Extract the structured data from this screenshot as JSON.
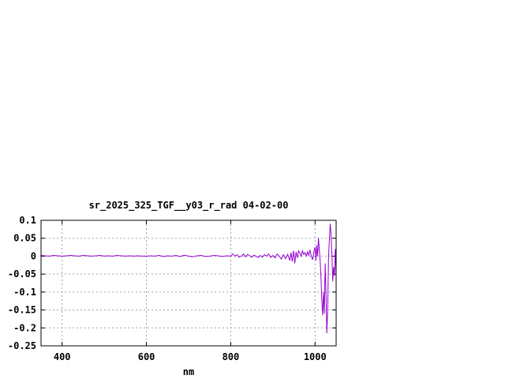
{
  "chart_data": {
    "type": "line",
    "title": "sr_2025_325_TGF__y03_r_rad 04-02-00",
    "xlabel": "nm",
    "ylabel": "",
    "xlim": [
      350,
      1050
    ],
    "ylim": [
      -0.25,
      0.1
    ],
    "xticks": [
      400,
      600,
      800,
      1000
    ],
    "xtick_labels": [
      "400",
      "600",
      "800",
      "1000"
    ],
    "yticks": [
      0.1,
      0.05,
      0,
      -0.05,
      -0.1,
      -0.15,
      -0.2,
      -0.25
    ],
    "ytick_labels": [
      "0.1",
      "0.05",
      "0",
      "-0.05",
      "-0.1",
      "-0.15",
      "-0.2",
      "-0.25"
    ],
    "grid": true,
    "series_color": "#9400d3",
    "series": [
      {
        "x": [
          350,
          360,
          370,
          380,
          390,
          400,
          410,
          420,
          430,
          440,
          450,
          460,
          470,
          480,
          490,
          500,
          510,
          520,
          530,
          540,
          550,
          560,
          570,
          580,
          590,
          600,
          610,
          620,
          630,
          640,
          650,
          660,
          670,
          680,
          690,
          700,
          710,
          720,
          730,
          740,
          750,
          760,
          770,
          780,
          790,
          800,
          805,
          810,
          815,
          820,
          825,
          830,
          835,
          840,
          845,
          850,
          855,
          860,
          865,
          870,
          875,
          880,
          885,
          890,
          895,
          900,
          905,
          910,
          915,
          920,
          925,
          930,
          935,
          940,
          943,
          946,
          949,
          952,
          955,
          958,
          961,
          964,
          967,
          970,
          973,
          976,
          979,
          982,
          985,
          988,
          991,
          994,
          997,
          1000,
          1002,
          1004,
          1006,
          1008,
          1010,
          1012,
          1014,
          1016,
          1018,
          1020,
          1022,
          1024,
          1026,
          1028,
          1030,
          1032,
          1034,
          1036,
          1038,
          1040,
          1042,
          1044,
          1046,
          1048,
          1050
        ],
        "y": [
          0.002,
          0.001,
          0.0,
          0.002,
          0.001,
          0.0,
          0.001,
          0.002,
          0.001,
          0.0,
          0.002,
          0.001,
          0.0,
          0.001,
          0.002,
          0.0,
          0.001,
          0.0,
          0.002,
          0.001,
          0.0,
          0.001,
          0.0,
          0.001,
          0.0,
          0.0,
          0.001,
          0.0,
          0.002,
          -0.001,
          0.001,
          0.0,
          0.002,
          -0.001,
          0.003,
          0.0,
          -0.002,
          0.001,
          0.002,
          -0.001,
          0.0,
          0.002,
          0.001,
          -0.001,
          0.001,
          0.0,
          0.006,
          0.0,
          0.004,
          -0.003,
          0.0,
          0.006,
          -0.002,
          0.005,
          0.001,
          -0.003,
          0.003,
          0.0,
          -0.004,
          0.002,
          -0.003,
          0.004,
          0.0,
          0.006,
          -0.004,
          0.002,
          -0.005,
          0.006,
          0.0,
          -0.008,
          0.004,
          -0.007,
          0.005,
          -0.012,
          0.01,
          -0.015,
          0.015,
          -0.02,
          0.012,
          -0.005,
          0.015,
          0.008,
          0.0,
          0.015,
          0.005,
          0.01,
          0.0,
          0.012,
          0.002,
          0.018,
          0.0,
          -0.01,
          0.012,
          0.025,
          -0.012,
          0.03,
          0.0,
          0.05,
          0.02,
          -0.01,
          -0.06,
          -0.12,
          -0.165,
          -0.1,
          -0.16,
          -0.02,
          -0.11,
          -0.215,
          -0.15,
          0.0,
          0.05,
          0.09,
          0.06,
          0.0,
          -0.07,
          -0.03,
          -0.055,
          0.02,
          -0.05
        ]
      }
    ]
  }
}
